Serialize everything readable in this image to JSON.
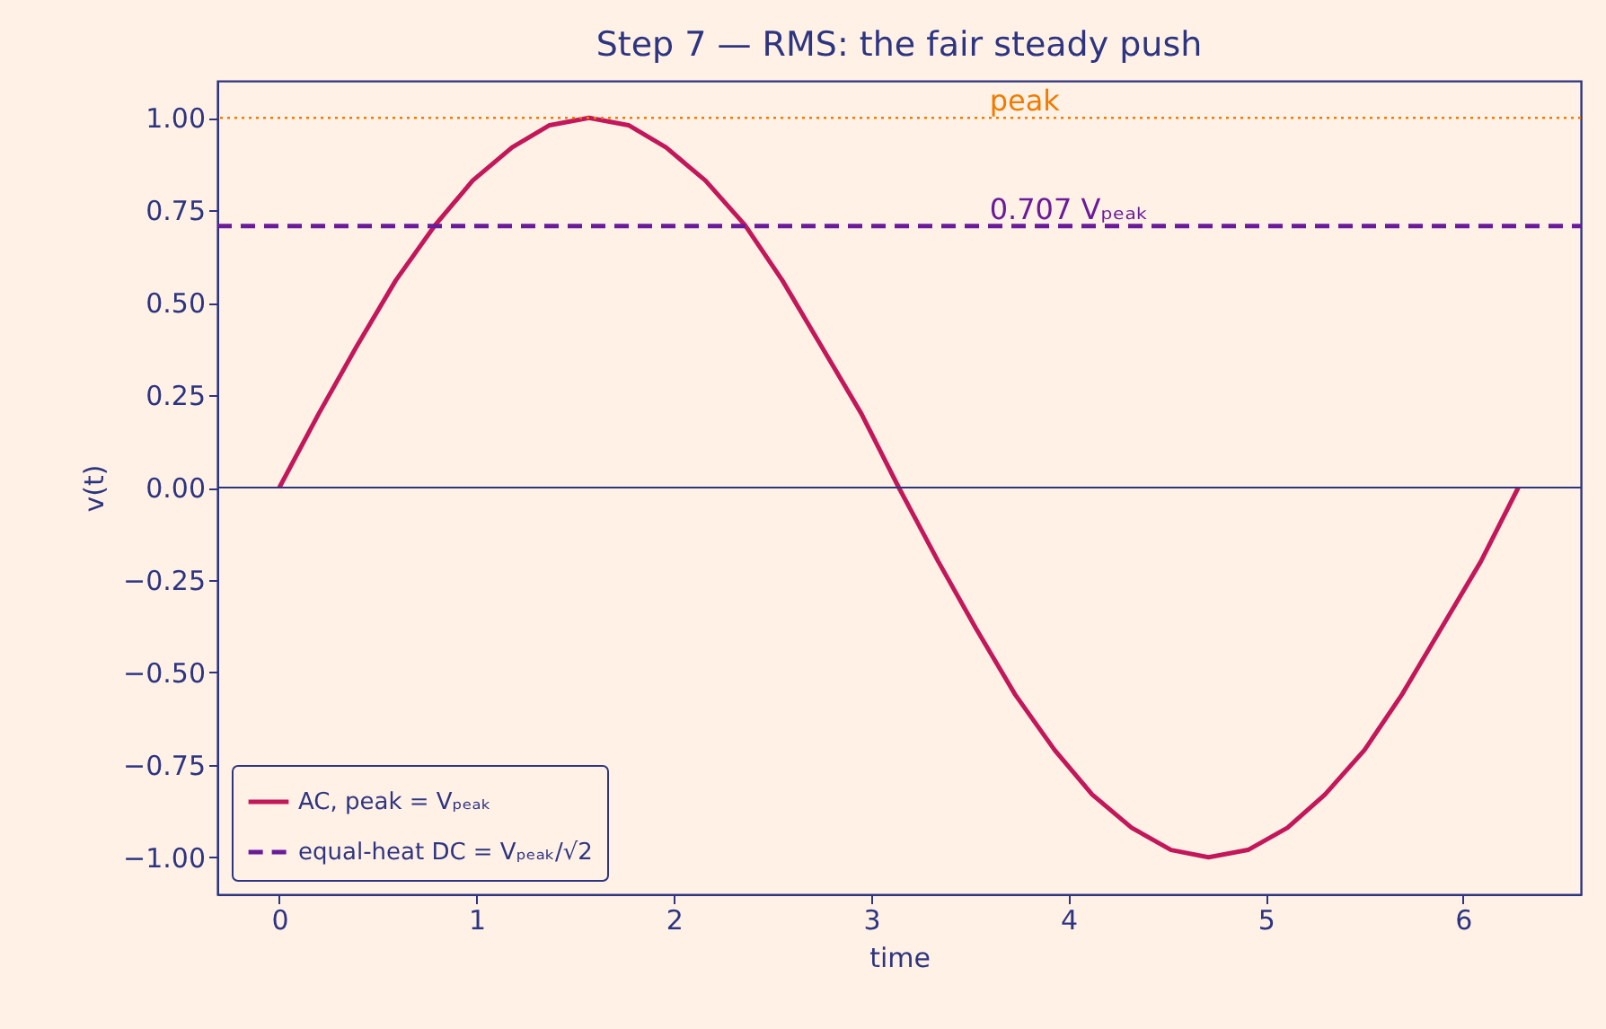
{
  "chart_data": {
    "type": "line",
    "title": "Step 7 — RMS: the fair steady push",
    "xlabel": "time",
    "ylabel": "v(t)",
    "xlim": [
      -0.314,
      6.597
    ],
    "ylim": [
      -1.1,
      1.1
    ],
    "xticks": [
      0,
      1,
      2,
      3,
      4,
      5,
      6
    ],
    "yticks": [
      {
        "value": -1,
        "label": "−1.00"
      },
      {
        "value": -0.75,
        "label": "−0.75"
      },
      {
        "value": -0.5,
        "label": "−0.50"
      },
      {
        "value": -0.25,
        "label": "−0.25"
      },
      {
        "value": 0,
        "label": "0.00"
      },
      {
        "value": 0.25,
        "label": "0.25"
      },
      {
        "value": 0.5,
        "label": "0.50"
      },
      {
        "value": 0.75,
        "label": "0.75"
      },
      {
        "value": 1,
        "label": "1.00"
      }
    ],
    "grid": false,
    "legend": "bottom left",
    "series": [
      {
        "name": "AC, peak = Vₚₑₐₖ",
        "color": "#c2185b",
        "line_style": "solid",
        "x": [
          0,
          0.2,
          0.39,
          0.59,
          0.79,
          0.98,
          1.18,
          1.37,
          1.57,
          1.77,
          1.96,
          2.16,
          2.36,
          2.55,
          2.75,
          2.95,
          3.14,
          3.34,
          3.53,
          3.73,
          3.93,
          4.12,
          4.32,
          4.52,
          4.71,
          4.91,
          5.11,
          5.3,
          5.5,
          5.69,
          5.89,
          6.09,
          6.28
        ],
        "values": [
          0,
          0.2,
          0.38,
          0.56,
          0.71,
          0.83,
          0.92,
          0.98,
          1,
          0.98,
          0.92,
          0.83,
          0.71,
          0.56,
          0.38,
          0.2,
          0,
          -0.2,
          -0.38,
          -0.56,
          -0.71,
          -0.83,
          -0.92,
          -0.98,
          -1,
          -0.98,
          -0.92,
          -0.83,
          -0.71,
          -0.56,
          -0.38,
          -0.2,
          0
        ]
      },
      {
        "name": "equal-heat DC = Vₚₑₐₖ/√2",
        "color": "#6a1b9a",
        "line_style": "dashed",
        "x": [
          -0.314,
          6.597
        ],
        "values": [
          0.707,
          0.707
        ]
      }
    ],
    "ref_lines": [
      {
        "axis": "y",
        "value": 1,
        "color": "#ef7c00",
        "line_style": "dotted"
      },
      {
        "axis": "y",
        "value": 0,
        "color": "#2e3580",
        "line_style": "solid"
      }
    ],
    "annotations": [
      {
        "text": "peak",
        "x": 3.6,
        "y": 1
      },
      {
        "text": "0.707 Vₚₑₐₖ",
        "x": 3.6,
        "y": 0.707
      }
    ]
  }
}
